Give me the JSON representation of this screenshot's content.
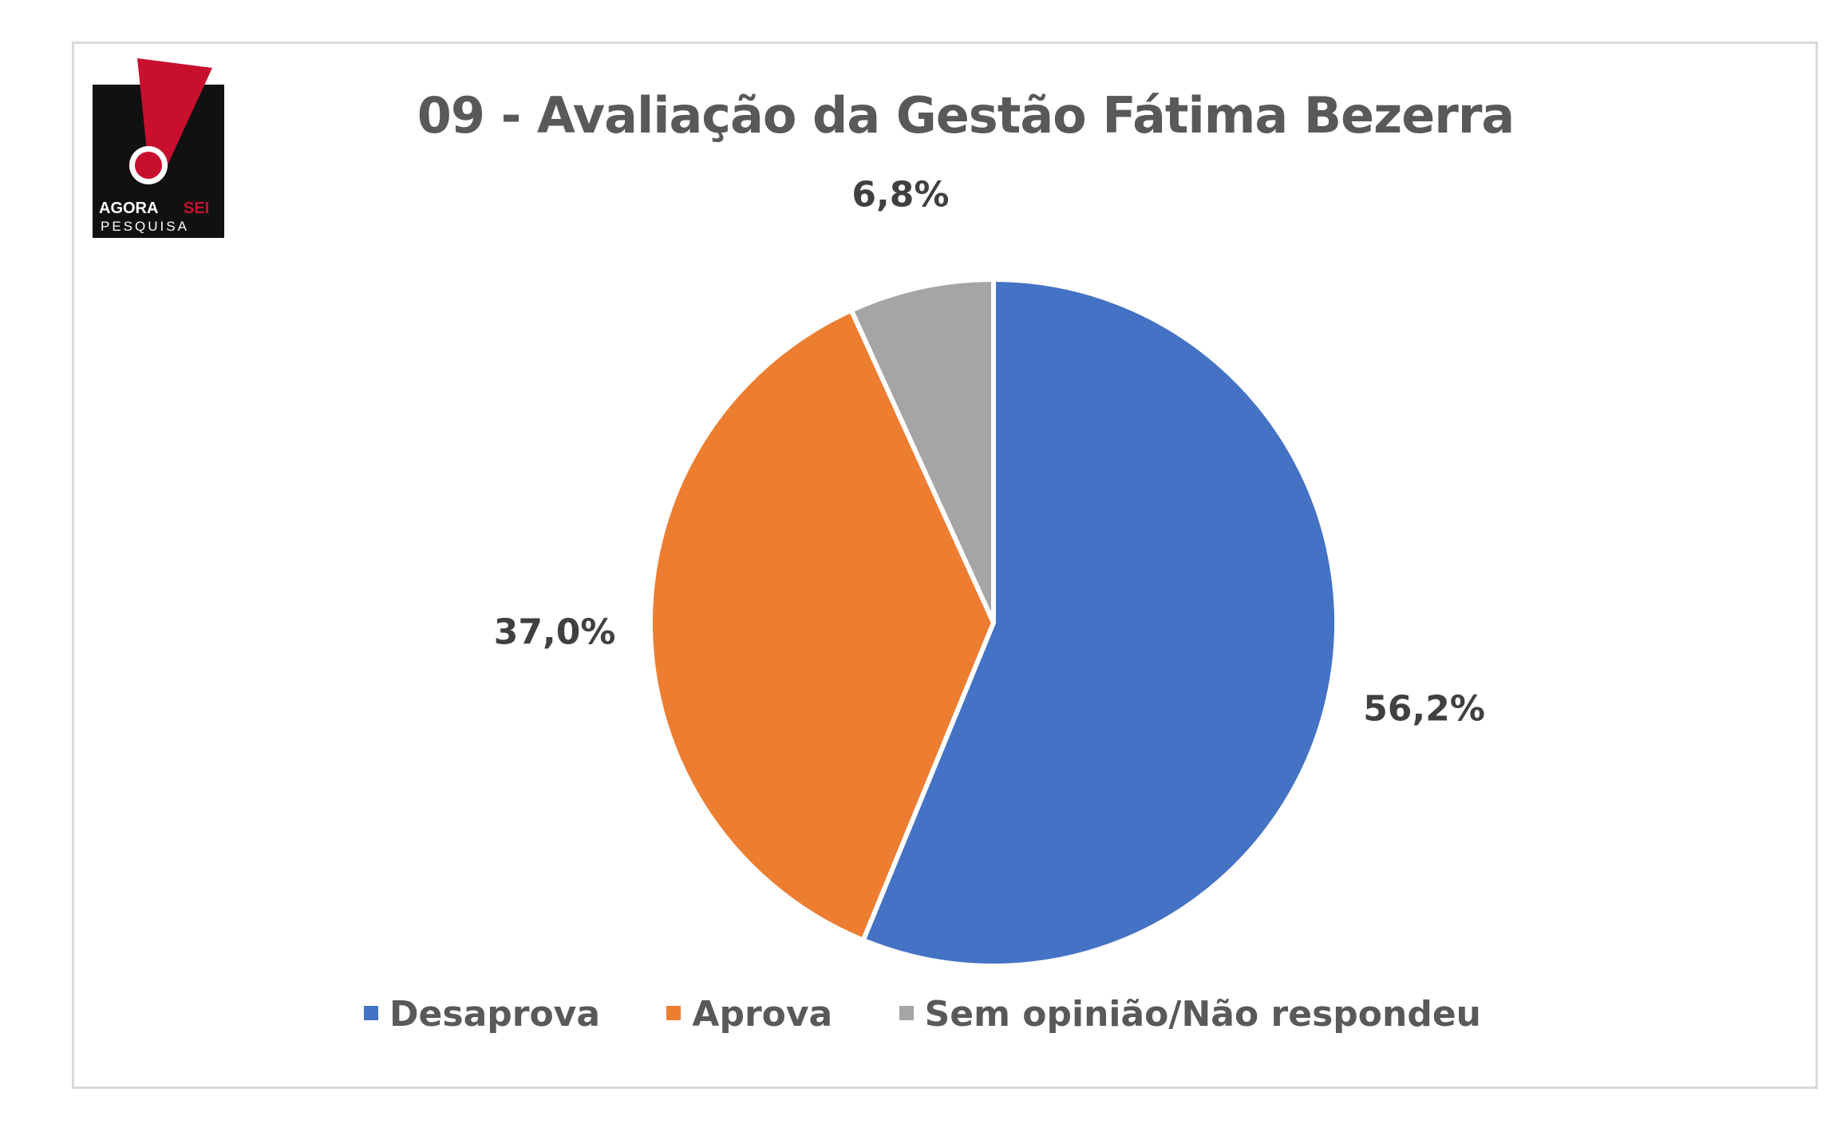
{
  "logo": {
    "line1a": "AGORA",
    "line1b": "SEI",
    "line2": "PESQUISA"
  },
  "chart_data": {
    "type": "pie",
    "title": "09 - Avaliação da Gestão Fátima Bezerra",
    "slices": [
      {
        "label": "Desaprova",
        "value": 56.2,
        "display": "56,2%",
        "color": "#4472C4"
      },
      {
        "label": "Aprova",
        "value": 37.0,
        "display": "37,0%",
        "color": "#ED7D31"
      },
      {
        "label": "Sem opinião/Não respondeu",
        "value": 6.8,
        "display": "6,8%",
        "color": "#A5A5A5"
      }
    ],
    "start_angle": "12 o'clock, clockwise",
    "legend_position": "bottom"
  }
}
